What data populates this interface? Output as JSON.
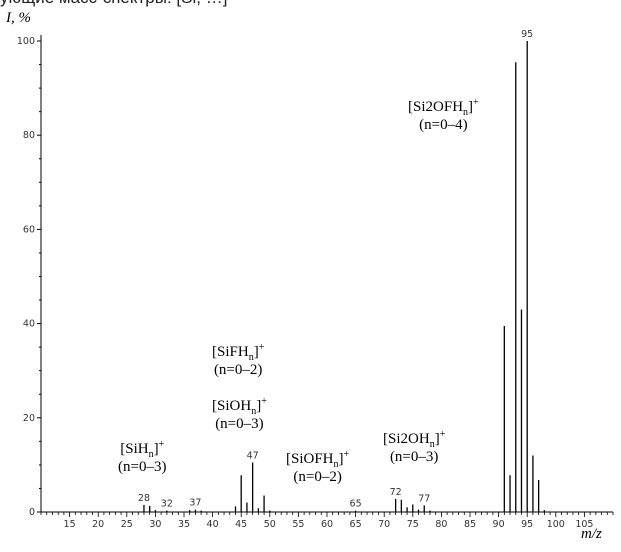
{
  "caption": "ующие масс-спектры: [Si, …]",
  "chart_data": {
    "type": "bar",
    "ylabel": "I, %",
    "xlabel": "m/z",
    "xlim": [
      10,
      110
    ],
    "ylim": [
      0,
      100
    ],
    "x_ticks": [
      15,
      20,
      25,
      30,
      35,
      40,
      45,
      50,
      55,
      60,
      65,
      70,
      75,
      80,
      85,
      90,
      95,
      100,
      105
    ],
    "y_ticks": [
      0,
      20,
      40,
      60,
      80,
      100
    ],
    "peaks": [
      {
        "x": 28,
        "y": 1.5
      },
      {
        "x": 29,
        "y": 1.3
      },
      {
        "x": 30,
        "y": 0.4
      },
      {
        "x": 32,
        "y": 0.3
      },
      {
        "x": 36,
        "y": 0.4
      },
      {
        "x": 37,
        "y": 0.5
      },
      {
        "x": 38,
        "y": 0.3
      },
      {
        "x": 44,
        "y": 1.2
      },
      {
        "x": 45,
        "y": 7.8
      },
      {
        "x": 46,
        "y": 2.0
      },
      {
        "x": 47,
        "y": 10.5
      },
      {
        "x": 48,
        "y": 0.8
      },
      {
        "x": 49,
        "y": 3.5
      },
      {
        "x": 50,
        "y": 0.3
      },
      {
        "x": 65,
        "y": 0.3
      },
      {
        "x": 72,
        "y": 2.8
      },
      {
        "x": 73,
        "y": 2.6
      },
      {
        "x": 74,
        "y": 1.0
      },
      {
        "x": 75,
        "y": 1.6
      },
      {
        "x": 76,
        "y": 0.5
      },
      {
        "x": 77,
        "y": 1.4
      },
      {
        "x": 78,
        "y": 0.3
      },
      {
        "x": 91,
        "y": 39.5
      },
      {
        "x": 92,
        "y": 7.8
      },
      {
        "x": 93,
        "y": 95.5
      },
      {
        "x": 94,
        "y": 43.0
      },
      {
        "x": 95,
        "y": 100
      },
      {
        "x": 96,
        "y": 12.0
      },
      {
        "x": 97,
        "y": 6.8
      },
      {
        "x": 98,
        "y": 0.4
      }
    ],
    "peak_labels": [
      {
        "x": 28,
        "text": "28"
      },
      {
        "x": 32,
        "text": "32"
      },
      {
        "x": 37,
        "text": "37"
      },
      {
        "x": 47,
        "text": "47"
      },
      {
        "x": 65,
        "text": "65"
      },
      {
        "x": 72,
        "text": "72"
      },
      {
        "x": 77,
        "text": "77"
      },
      {
        "x": 95,
        "text": "95"
      }
    ]
  },
  "annotations": {
    "sihn": {
      "formula": "SiH",
      "sub": "n",
      "charge": "+",
      "range": "(n=0–3)"
    },
    "sifhn": {
      "formula": "SiFH",
      "sub": "n",
      "charge": "+",
      "range": "(n=0–2)"
    },
    "siohn": {
      "formula": "SiOH",
      "sub": "n",
      "charge": "+",
      "range": "(n=0–3)"
    },
    "siofhn": {
      "formula": "SiOFH",
      "sub": "n",
      "charge": "+",
      "range": "(n=0–2)"
    },
    "si2ohn": {
      "formula_a": "Si",
      "num": "2",
      "formula_b": "OH",
      "sub": "n",
      "charge": "+",
      "range": "(n=0–3)"
    },
    "si2ofhn": {
      "formula_a": "Si",
      "num": "2",
      "formula_b": "OFH",
      "sub": "n",
      "charge": "+",
      "range": "(n=0–4)"
    }
  }
}
